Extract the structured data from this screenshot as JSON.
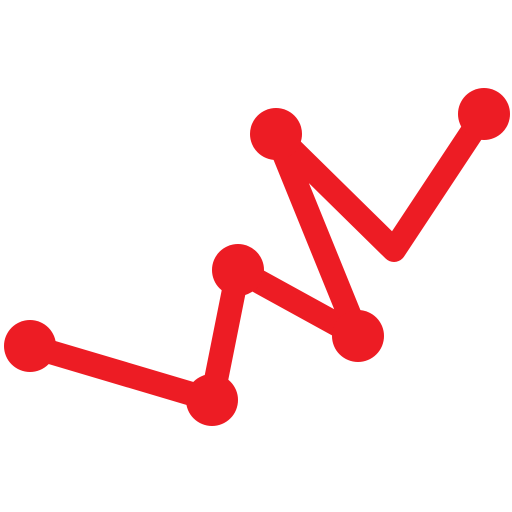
{
  "icon": {
    "name": "trend-line-chart-icon",
    "color": "#ED1C24",
    "background": "#FFFFFF",
    "point_count": 7
  }
}
